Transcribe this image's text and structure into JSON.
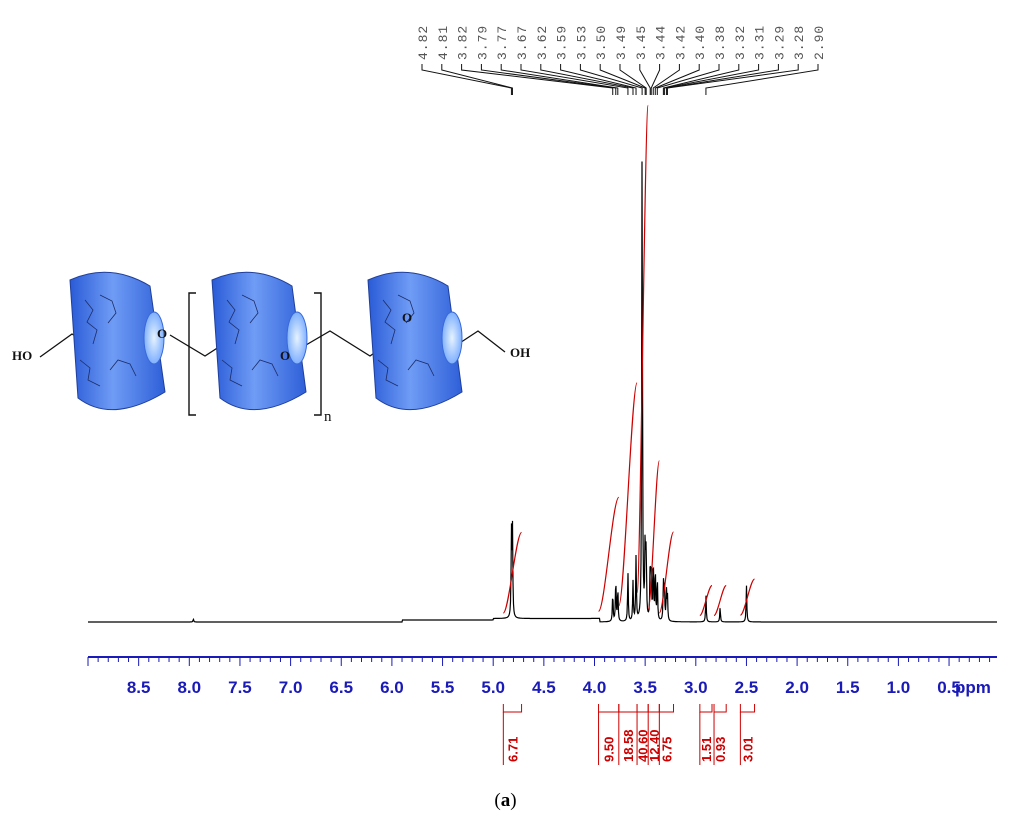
{
  "caption": {
    "open": "(",
    "label": "a",
    "close": ")"
  },
  "chart_data": {
    "type": "line",
    "title": "",
    "xlabel": "ppm",
    "ylabel": "",
    "xlim": [
      9.0,
      0.0
    ],
    "x_reversed": true,
    "grid": false,
    "colors": {
      "spectrum": "#000000",
      "integral": "#cc0000",
      "axis": "#1a1ab8",
      "peak_labels": "#555555"
    },
    "x_ticks": [
      {
        "value": 8.5,
        "label": "8.5"
      },
      {
        "value": 8.0,
        "label": "8.0"
      },
      {
        "value": 7.5,
        "label": "7.5"
      },
      {
        "value": 7.0,
        "label": "7.0"
      },
      {
        "value": 6.5,
        "label": "6.5"
      },
      {
        "value": 6.0,
        "label": "6.0"
      },
      {
        "value": 5.5,
        "label": "5.5"
      },
      {
        "value": 5.0,
        "label": "5.0"
      },
      {
        "value": 4.5,
        "label": "4.5"
      },
      {
        "value": 4.0,
        "label": "4.0"
      },
      {
        "value": 3.5,
        "label": "3.5"
      },
      {
        "value": 3.0,
        "label": "3.0"
      },
      {
        "value": 2.5,
        "label": "2.5"
      },
      {
        "value": 2.0,
        "label": "2.0"
      },
      {
        "value": 1.5,
        "label": "1.5"
      },
      {
        "value": 1.0,
        "label": "1.0"
      },
      {
        "value": 0.5,
        "label": "0.5"
      }
    ],
    "peak_labels": [
      {
        "label": "4.82",
        "ppm": 4.82
      },
      {
        "label": "4.81",
        "ppm": 4.81
      },
      {
        "label": "3.82",
        "ppm": 3.82
      },
      {
        "label": "3.79",
        "ppm": 3.79
      },
      {
        "label": "3.77",
        "ppm": 3.77
      },
      {
        "label": "3.67",
        "ppm": 3.67
      },
      {
        "label": "3.62",
        "ppm": 3.62
      },
      {
        "label": "3.59",
        "ppm": 3.59
      },
      {
        "label": "3.53",
        "ppm": 3.53
      },
      {
        "label": "3.50",
        "ppm": 3.5
      },
      {
        "label": "3.49",
        "ppm": 3.49
      },
      {
        "label": "3.45",
        "ppm": 3.45
      },
      {
        "label": "3.44",
        "ppm": 3.44
      },
      {
        "label": "3.42",
        "ppm": 3.42
      },
      {
        "label": "3.40",
        "ppm": 3.4
      },
      {
        "label": "3.38",
        "ppm": 3.38
      },
      {
        "label": "3.32",
        "ppm": 3.32
      },
      {
        "label": "3.31",
        "ppm": 3.31
      },
      {
        "label": "3.29",
        "ppm": 3.29
      },
      {
        "label": "3.28",
        "ppm": 3.28
      },
      {
        "label": "2.90",
        "ppm": 2.9
      }
    ],
    "peaks": [
      {
        "ppm": 7.96,
        "intensity": 0.006
      },
      {
        "ppm": 4.82,
        "intensity": 0.17
      },
      {
        "ppm": 4.81,
        "intensity": 0.18
      },
      {
        "ppm": 3.82,
        "intensity": 0.06
      },
      {
        "ppm": 3.79,
        "intensity": 0.09
      },
      {
        "ppm": 3.77,
        "intensity": 0.07
      },
      {
        "ppm": 3.67,
        "intensity": 0.1
      },
      {
        "ppm": 3.62,
        "intensity": 0.08
      },
      {
        "ppm": 3.59,
        "intensity": 0.13
      },
      {
        "ppm": 3.53,
        "intensity": 1.0
      },
      {
        "ppm": 3.5,
        "intensity": 0.16
      },
      {
        "ppm": 3.49,
        "intensity": 0.14
      },
      {
        "ppm": 3.45,
        "intensity": 0.12
      },
      {
        "ppm": 3.44,
        "intensity": 0.1
      },
      {
        "ppm": 3.42,
        "intensity": 0.13
      },
      {
        "ppm": 3.4,
        "intensity": 0.11
      },
      {
        "ppm": 3.38,
        "intensity": 0.09
      },
      {
        "ppm": 3.32,
        "intensity": 0.08
      },
      {
        "ppm": 3.31,
        "intensity": 0.07
      },
      {
        "ppm": 3.29,
        "intensity": 0.06
      },
      {
        "ppm": 3.28,
        "intensity": 0.05
      },
      {
        "ppm": 2.9,
        "intensity": 0.055
      },
      {
        "ppm": 2.76,
        "intensity": 0.03
      },
      {
        "ppm": 2.5,
        "intensity": 0.075
      }
    ],
    "integrals": [
      {
        "label": "6.71",
        "from": 4.9,
        "to": 4.72,
        "value": 6.71
      },
      {
        "label": "9.50",
        "from": 3.96,
        "to": 3.76,
        "value": 9.5
      },
      {
        "label": "18.58",
        "from": 3.76,
        "to": 3.58,
        "value": 18.58
      },
      {
        "label": "40.60",
        "from": 3.58,
        "to": 3.47,
        "value": 40.6
      },
      {
        "label": "12.40",
        "from": 3.47,
        "to": 3.36,
        "value": 12.4
      },
      {
        "label": "6.75",
        "from": 3.36,
        "to": 3.22,
        "value": 6.75
      },
      {
        "label": "1.51",
        "from": 2.96,
        "to": 2.84,
        "value": 1.51
      },
      {
        "label": "0.93",
        "from": 2.82,
        "to": 2.7,
        "value": 0.93
      },
      {
        "label": "3.01",
        "from": 2.56,
        "to": 2.42,
        "value": 3.01
      }
    ],
    "inset_structure": {
      "labels": {
        "left_terminal": "HO",
        "right_terminal": "OH",
        "repeat": "n",
        "oxygen": "O"
      }
    }
  }
}
